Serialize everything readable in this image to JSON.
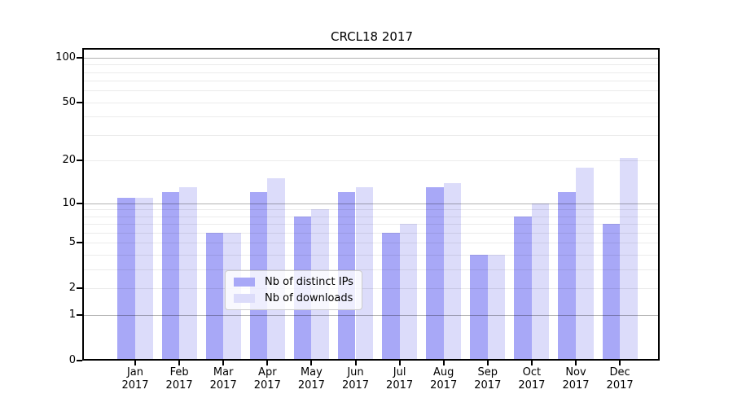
{
  "chart_data": {
    "type": "bar",
    "title": "CRCL18 2017",
    "categories": [
      "Jan",
      "Feb",
      "Mar",
      "Apr",
      "May",
      "Jun",
      "Jul",
      "Aug",
      "Sep",
      "Oct",
      "Nov",
      "Dec"
    ],
    "year_label": "2017",
    "series": [
      {
        "name": "Nb of distinct IPs",
        "color": "#a8a8f7",
        "values": [
          11,
          12,
          6,
          12,
          8,
          12,
          6,
          13,
          4,
          8,
          12,
          7
        ]
      },
      {
        "name": "Nb of downloads",
        "color": "#dcdcfa",
        "values": [
          11,
          13,
          6,
          15,
          9,
          13,
          7,
          14,
          4,
          10,
          18,
          21
        ]
      }
    ],
    "yscale": "symlog-log1p",
    "ylim": [
      0,
      113
    ],
    "ytick_values": [
      100,
      50,
      20,
      10,
      5,
      2,
      1,
      0
    ],
    "ytick_labels": [
      "100",
      "50",
      "20",
      "10",
      "5",
      "2",
      "1",
      "0"
    ],
    "major_gridlines": [
      1,
      10,
      100
    ],
    "minor_gridlines": [
      2,
      3,
      4,
      5,
      6,
      7,
      8,
      9,
      20,
      30,
      40,
      50,
      60,
      70,
      80,
      90
    ],
    "grid": true,
    "legend_position": "lower center"
  },
  "colors": {
    "background": "#ffffff",
    "spine": "#000000",
    "text": "#000000",
    "major_grid": "rgba(0,0,0,0.30)",
    "minor_grid": "rgba(0,0,0,0.08)",
    "legend_bg": "rgba(255,255,255,0.8)",
    "legend_border": "#cccccc"
  }
}
